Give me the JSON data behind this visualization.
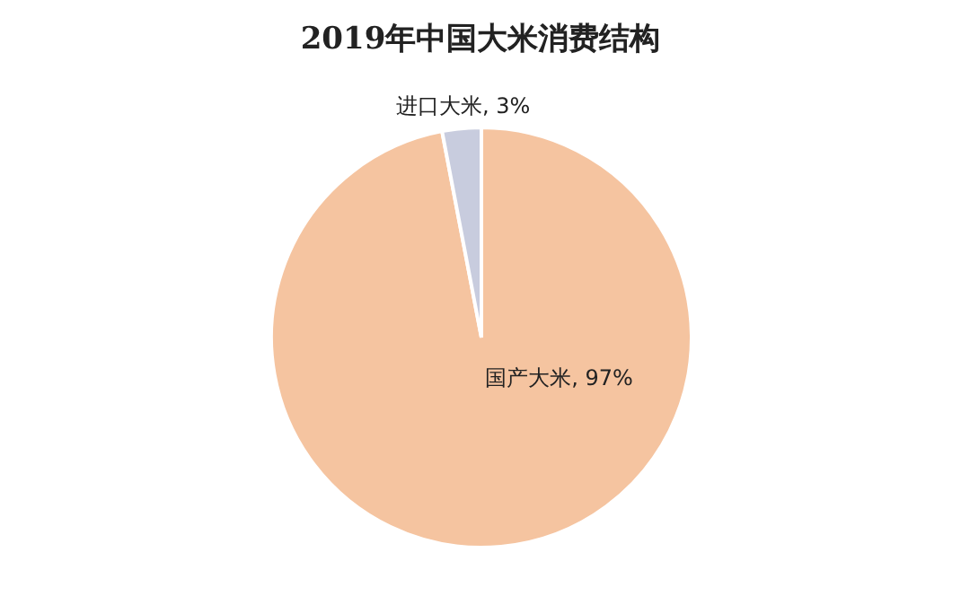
{
  "chart_data": {
    "type": "pie",
    "title": "2019年中国大米消费结构",
    "categories": [
      "国产大米",
      "进口大米"
    ],
    "values": [
      97,
      3
    ],
    "value_labels": [
      "97%",
      "3%"
    ],
    "colors": [
      "#f5c4a0",
      "#c8ccde"
    ],
    "legend": false
  }
}
